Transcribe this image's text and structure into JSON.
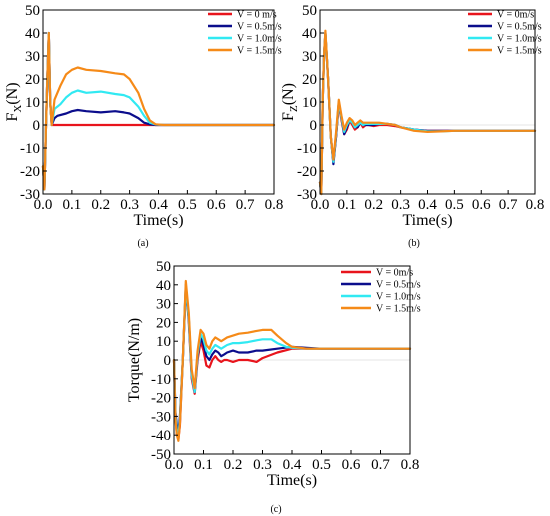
{
  "chart_data": [
    {
      "type": "line",
      "panel_label": "(a)",
      "xlabel": "Time(s)",
      "ylabel_main": "F",
      "ylabel_sub": "X",
      "ylabel_tail": "(N)",
      "xlim": [
        0.0,
        0.8
      ],
      "ylim": [
        -30,
        50
      ],
      "xticks": [
        "0.0",
        "0.1",
        "0.2",
        "0.3",
        "0.4",
        "0.5",
        "0.6",
        "0.7",
        "0.8"
      ],
      "yticks": [
        "-30",
        "-20",
        "-10",
        "0",
        "10",
        "20",
        "30",
        "40",
        "50"
      ],
      "legend_position": "top-right",
      "series": [
        {
          "name": "V = 0 m/s",
          "color": "#e8141c",
          "x": [
            0,
            0.005,
            0.01,
            0.015,
            0.02,
            0.025,
            0.03,
            0.04,
            0.1,
            0.2,
            0.3,
            0.4,
            0.5,
            0.6,
            0.7,
            0.8
          ],
          "y": [
            -18,
            -28,
            -2,
            20,
            40,
            10,
            0,
            0,
            0,
            0,
            0,
            0,
            0,
            0,
            0,
            0
          ]
        },
        {
          "name": "V = 0.5m/s",
          "color": "#0b0d8c",
          "x": [
            0,
            0.005,
            0.01,
            0.015,
            0.02,
            0.025,
            0.03,
            0.04,
            0.05,
            0.08,
            0.1,
            0.12,
            0.15,
            0.2,
            0.25,
            0.28,
            0.3,
            0.33,
            0.35,
            0.37,
            0.39,
            0.42,
            0.5,
            0.6,
            0.7,
            0.8
          ],
          "y": [
            -18,
            -28,
            -2,
            20,
            40,
            10,
            0,
            3,
            4,
            5,
            6,
            6.5,
            6,
            5.5,
            6,
            5.5,
            5,
            3,
            1,
            0.3,
            0,
            0,
            0,
            0,
            0,
            0
          ]
        },
        {
          "name": "V = 1.0m/s",
          "color": "#31e9f2",
          "x": [
            0,
            0.005,
            0.01,
            0.015,
            0.02,
            0.025,
            0.03,
            0.04,
            0.06,
            0.08,
            0.1,
            0.12,
            0.15,
            0.2,
            0.25,
            0.28,
            0.3,
            0.33,
            0.35,
            0.37,
            0.39,
            0.42,
            0.5,
            0.6,
            0.7,
            0.8
          ],
          "y": [
            -18,
            -28,
            -2,
            20,
            40,
            10,
            0,
            7,
            9,
            12,
            14,
            15,
            14,
            14.5,
            13.5,
            13,
            12,
            8,
            4,
            1,
            0.2,
            0,
            0,
            0,
            0,
            0
          ]
        },
        {
          "name": "V = 1.5m/s",
          "color": "#f58a18",
          "x": [
            0,
            0.005,
            0.01,
            0.015,
            0.02,
            0.025,
            0.03,
            0.04,
            0.06,
            0.08,
            0.1,
            0.12,
            0.15,
            0.2,
            0.25,
            0.28,
            0.3,
            0.33,
            0.35,
            0.37,
            0.39,
            0.42,
            0.5,
            0.6,
            0.7,
            0.8
          ],
          "y": [
            -18,
            -28,
            -2,
            20,
            40,
            10,
            0,
            11,
            17,
            22,
            24,
            25,
            24,
            23.5,
            22.5,
            22,
            20,
            14,
            7,
            2,
            0.3,
            0,
            0,
            0,
            0,
            0
          ]
        }
      ]
    },
    {
      "type": "line",
      "panel_label": "(b)",
      "xlabel": "Time(s)",
      "ylabel_main": "F",
      "ylabel_sub": "Z",
      "ylabel_tail": "(N)",
      "xlim": [
        0.0,
        0.8
      ],
      "ylim": [
        -30,
        50
      ],
      "xticks": [
        "0.0",
        "0.1",
        "0.2",
        "0.3",
        "0.4",
        "0.5",
        "0.6",
        "0.7",
        "0.8"
      ],
      "yticks": [
        "-30",
        "-20",
        "-10",
        "0",
        "10",
        "20",
        "30",
        "40",
        "50"
      ],
      "legend_position": "top-right",
      "series": [
        {
          "name": "V = 0m/s",
          "color": "#e8141c",
          "x": [
            0,
            0.005,
            0.01,
            0.015,
            0.02,
            0.03,
            0.04,
            0.05,
            0.06,
            0.07,
            0.08,
            0.09,
            0.1,
            0.11,
            0.12,
            0.13,
            0.14,
            0.15,
            0.16,
            0.17,
            0.18,
            0.2,
            0.22,
            0.25,
            0.28,
            0.3,
            0.35,
            0.4,
            0.45,
            0.5,
            0.6,
            0.7,
            0.8
          ],
          "y": [
            -25,
            -30,
            10,
            30,
            40,
            20,
            -5,
            -16,
            -5,
            9,
            2,
            -4,
            -2,
            2,
            0,
            -2,
            -1,
            1,
            -1,
            0,
            0,
            -0.5,
            0,
            0,
            -0.5,
            -1,
            -2,
            -2.5,
            -2.5,
            -2.5,
            -2.5,
            -2.5,
            -2.5
          ]
        },
        {
          "name": "V = 0.5m/s",
          "color": "#0b0d8c",
          "x": [
            0,
            0.005,
            0.01,
            0.015,
            0.02,
            0.03,
            0.04,
            0.05,
            0.06,
            0.07,
            0.08,
            0.09,
            0.1,
            0.11,
            0.12,
            0.13,
            0.14,
            0.15,
            0.16,
            0.17,
            0.18,
            0.2,
            0.22,
            0.25,
            0.28,
            0.3,
            0.35,
            0.4,
            0.45,
            0.5,
            0.6,
            0.7,
            0.8
          ],
          "y": [
            -25,
            -30,
            10,
            30,
            40,
            20,
            -5,
            -17,
            -5,
            10,
            3,
            -4,
            -1,
            2,
            1,
            -1,
            -1,
            1,
            0,
            0,
            0,
            0,
            0.5,
            0.5,
            0,
            -1,
            -2,
            -2.5,
            -2.5,
            -2.5,
            -2.5,
            -2.5,
            -2.5
          ]
        },
        {
          "name": "V = 1.0m/s",
          "color": "#31e9f2",
          "x": [
            0,
            0.005,
            0.01,
            0.015,
            0.02,
            0.03,
            0.04,
            0.05,
            0.06,
            0.07,
            0.08,
            0.09,
            0.1,
            0.11,
            0.12,
            0.13,
            0.14,
            0.15,
            0.16,
            0.17,
            0.18,
            0.2,
            0.22,
            0.25,
            0.28,
            0.3,
            0.35,
            0.4,
            0.45,
            0.5,
            0.6,
            0.7,
            0.8
          ],
          "y": [
            -25,
            -30,
            10,
            30,
            40,
            20,
            -5,
            -16,
            -4,
            10,
            3,
            -3,
            0,
            2,
            1,
            -1,
            0,
            1,
            0,
            0.5,
            0.5,
            0.5,
            0.5,
            0.5,
            0,
            -1,
            -2,
            -2.8,
            -2.8,
            -2.5,
            -2.5,
            -2.5,
            -2.5
          ]
        },
        {
          "name": "V = 1.5m/s",
          "color": "#f58a18",
          "x": [
            0,
            0.005,
            0.01,
            0.015,
            0.02,
            0.03,
            0.04,
            0.05,
            0.06,
            0.07,
            0.08,
            0.09,
            0.1,
            0.11,
            0.12,
            0.13,
            0.14,
            0.15,
            0.16,
            0.17,
            0.18,
            0.2,
            0.22,
            0.25,
            0.28,
            0.3,
            0.35,
            0.4,
            0.45,
            0.5,
            0.6,
            0.7,
            0.8
          ],
          "y": [
            -25,
            -30,
            10,
            30,
            41,
            20,
            -5,
            -15,
            -3,
            11,
            4,
            -2,
            1,
            3,
            2,
            0,
            1,
            2,
            1,
            1,
            1,
            1,
            1,
            0.5,
            0,
            -1,
            -2.5,
            -3,
            -2.8,
            -2.5,
            -2.5,
            -2.5,
            -2.5
          ]
        }
      ]
    },
    {
      "type": "line",
      "panel_label": "(c)",
      "xlabel": "Time(s)",
      "ylabel_main": "Torque(N/m)",
      "ylabel_sub": "",
      "ylabel_tail": "",
      "xlim": [
        0.0,
        0.8
      ],
      "ylim": [
        -50,
        50
      ],
      "xticks": [
        "0.0",
        "0.1",
        "0.2",
        "0.3",
        "0.4",
        "0.5",
        "0.6",
        "0.7",
        "0.8"
      ],
      "yticks": [
        "-50",
        "-40",
        "-30",
        "-20",
        "-10",
        "0",
        "10",
        "20",
        "30",
        "40",
        "50"
      ],
      "legend_position": "top-right",
      "series": [
        {
          "name": "V = 0m/s",
          "color": "#e8141c",
          "x": [
            0,
            0.005,
            0.01,
            0.015,
            0.02,
            0.03,
            0.04,
            0.05,
            0.06,
            0.07,
            0.08,
            0.09,
            0.1,
            0.11,
            0.12,
            0.13,
            0.14,
            0.15,
            0.16,
            0.17,
            0.18,
            0.2,
            0.22,
            0.25,
            0.28,
            0.3,
            0.35,
            0.4,
            0.45,
            0.5,
            0.6,
            0.7,
            0.8
          ],
          "y": [
            0,
            -30,
            -40,
            -42,
            -35,
            0,
            40,
            20,
            -10,
            -18,
            0,
            10,
            5,
            -3,
            -4,
            0,
            2,
            0,
            -1,
            0,
            0,
            -1,
            0,
            0,
            -1,
            1,
            4,
            6,
            6,
            6,
            6,
            6,
            6
          ]
        },
        {
          "name": "V = 0.5m/s",
          "color": "#0b0d8c",
          "x": [
            0,
            0.005,
            0.01,
            0.015,
            0.02,
            0.03,
            0.04,
            0.05,
            0.06,
            0.07,
            0.08,
            0.09,
            0.1,
            0.11,
            0.12,
            0.13,
            0.14,
            0.15,
            0.16,
            0.17,
            0.18,
            0.2,
            0.22,
            0.25,
            0.28,
            0.3,
            0.35,
            0.4,
            0.45,
            0.5,
            0.6,
            0.7,
            0.8
          ],
          "y": [
            0,
            -28,
            -35,
            -38,
            -30,
            0,
            38,
            22,
            -8,
            -17,
            2,
            12,
            8,
            2,
            0,
            3,
            5,
            4,
            2,
            3,
            4,
            5,
            4,
            4,
            5,
            5,
            6,
            7,
            6.5,
            6,
            6,
            6,
            6
          ]
        },
        {
          "name": "V = 1.0m/s",
          "color": "#31e9f2",
          "x": [
            0,
            0.005,
            0.01,
            0.015,
            0.02,
            0.03,
            0.04,
            0.05,
            0.06,
            0.07,
            0.08,
            0.09,
            0.1,
            0.11,
            0.12,
            0.13,
            0.14,
            0.15,
            0.16,
            0.17,
            0.18,
            0.2,
            0.22,
            0.25,
            0.28,
            0.3,
            0.33,
            0.35,
            0.38,
            0.4,
            0.45,
            0.5,
            0.6,
            0.7,
            0.8
          ],
          "y": [
            0,
            -30,
            -38,
            -40,
            -32,
            0,
            40,
            22,
            -8,
            -17,
            3,
            14,
            11,
            5,
            3,
            6,
            8,
            7,
            6,
            7,
            8,
            9,
            9,
            9.5,
            10.5,
            11,
            11,
            9,
            7,
            6.5,
            6,
            6,
            6,
            6,
            6
          ]
        },
        {
          "name": "V = 1.5m/s",
          "color": "#f58a18",
          "x": [
            0,
            0.005,
            0.01,
            0.015,
            0.02,
            0.03,
            0.04,
            0.05,
            0.06,
            0.07,
            0.08,
            0.09,
            0.1,
            0.11,
            0.12,
            0.13,
            0.14,
            0.15,
            0.16,
            0.17,
            0.18,
            0.2,
            0.22,
            0.25,
            0.28,
            0.3,
            0.33,
            0.35,
            0.38,
            0.4,
            0.45,
            0.5,
            0.6,
            0.7,
            0.8
          ],
          "y": [
            0,
            -32,
            -40,
            -43,
            -34,
            0,
            42,
            25,
            -5,
            -15,
            5,
            16,
            14,
            8,
            6,
            10,
            12,
            11,
            10,
            11,
            12,
            13,
            14,
            14.5,
            15.5,
            16,
            16,
            13,
            9,
            7,
            6,
            6,
            6,
            6,
            6
          ]
        }
      ]
    }
  ]
}
